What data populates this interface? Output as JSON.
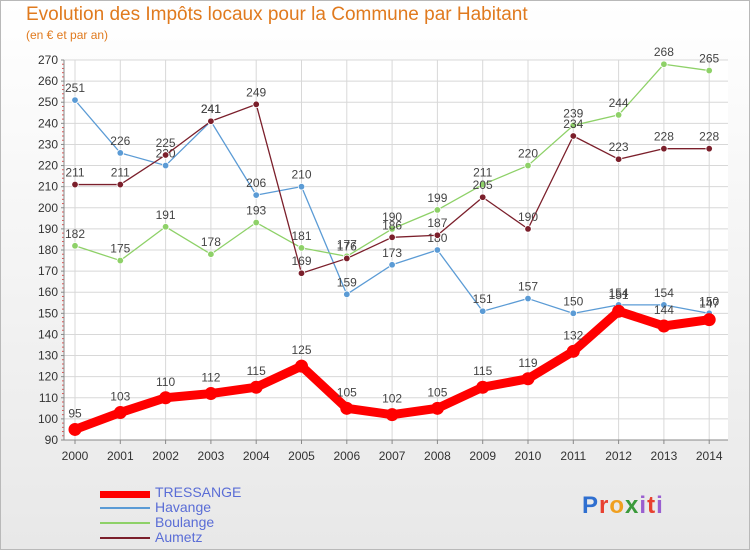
{
  "chart_data": {
    "type": "line",
    "title": "Evolution des Impôts locaux pour la Commune par Habitant",
    "subtitle": "(en € et par an)",
    "categories": [
      "2000",
      "2001",
      "2002",
      "2003",
      "2004",
      "2005",
      "2006",
      "2007",
      "2008",
      "2009",
      "2010",
      "2011",
      "2012",
      "2013",
      "2014"
    ],
    "ylim": [
      90,
      270
    ],
    "yticks": [
      90,
      100,
      110,
      120,
      130,
      140,
      150,
      160,
      170,
      180,
      190,
      200,
      210,
      220,
      230,
      240,
      250,
      260,
      270
    ],
    "grid": true,
    "series": [
      {
        "name": "TRESSANGE",
        "color": "#ff0000",
        "values": [
          95,
          103,
          110,
          112,
          115,
          125,
          105,
          102,
          105,
          115,
          119,
          132,
          151,
          144,
          147
        ]
      },
      {
        "name": "Havange",
        "color": "#5b9bd5",
        "values": [
          251,
          226,
          220,
          241,
          206,
          210,
          159,
          173,
          180,
          151,
          157,
          150,
          154,
          154,
          150
        ]
      },
      {
        "name": "Boulange",
        "color": "#8ed168",
        "values": [
          182,
          175,
          191,
          178,
          193,
          181,
          177,
          190,
          199,
          211,
          220,
          239,
          244,
          268,
          265
        ]
      },
      {
        "name": "Aumetz",
        "color": "#7b1f2b",
        "values": [
          211,
          211,
          225,
          241,
          249,
          169,
          176,
          186,
          187,
          205,
          190,
          234,
          223,
          228,
          228
        ]
      }
    ]
  },
  "logo": {
    "text": "Proxiti",
    "parts": [
      "P",
      "r",
      "o",
      "x",
      "i",
      "t",
      "i"
    ]
  }
}
